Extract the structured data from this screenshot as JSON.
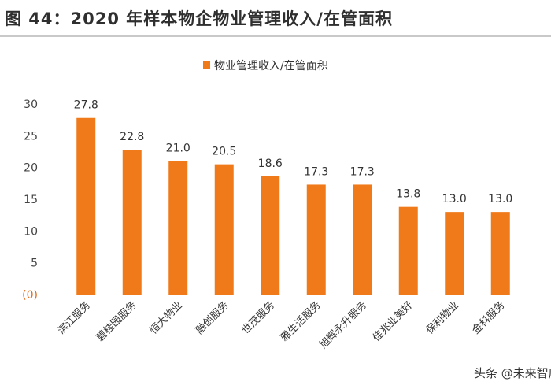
{
  "title": "图 44：2020 年样本物企物业管理收入/在管面积",
  "watermark": "头条 @未来智库",
  "colors": {
    "bar": "#f07a1a",
    "text": "#333333",
    "negative_tick": "#e06a1a"
  },
  "chart_data": {
    "type": "bar",
    "title": "",
    "xlabel": "",
    "ylabel": "",
    "ylim": [
      0,
      30
    ],
    "y_ticks": [
      0,
      5,
      10,
      15,
      20,
      25,
      30
    ],
    "y_tick_labels": [
      "(0)",
      "5",
      "10",
      "15",
      "20",
      "25",
      "30"
    ],
    "grid": false,
    "legend": {
      "position": "top",
      "entries": [
        "物业管理收入/在管面积"
      ]
    },
    "categories": [
      "滨江服务",
      "碧桂园服务",
      "恒大物业",
      "融创服务",
      "世茂服务",
      "雅生活服务",
      "旭辉永升服务",
      "佳兆业美好",
      "保利物业",
      "金科服务"
    ],
    "series": [
      {
        "name": "物业管理收入/在管面积",
        "values": [
          27.8,
          22.8,
          21.0,
          20.5,
          18.6,
          17.3,
          17.3,
          13.8,
          13.0,
          13.0
        ],
        "labels": [
          "27.8",
          "22.8",
          "21.0",
          "20.5",
          "18.6",
          "17.3",
          "17.3",
          "13.8",
          "13.0",
          "13.0"
        ]
      }
    ]
  }
}
